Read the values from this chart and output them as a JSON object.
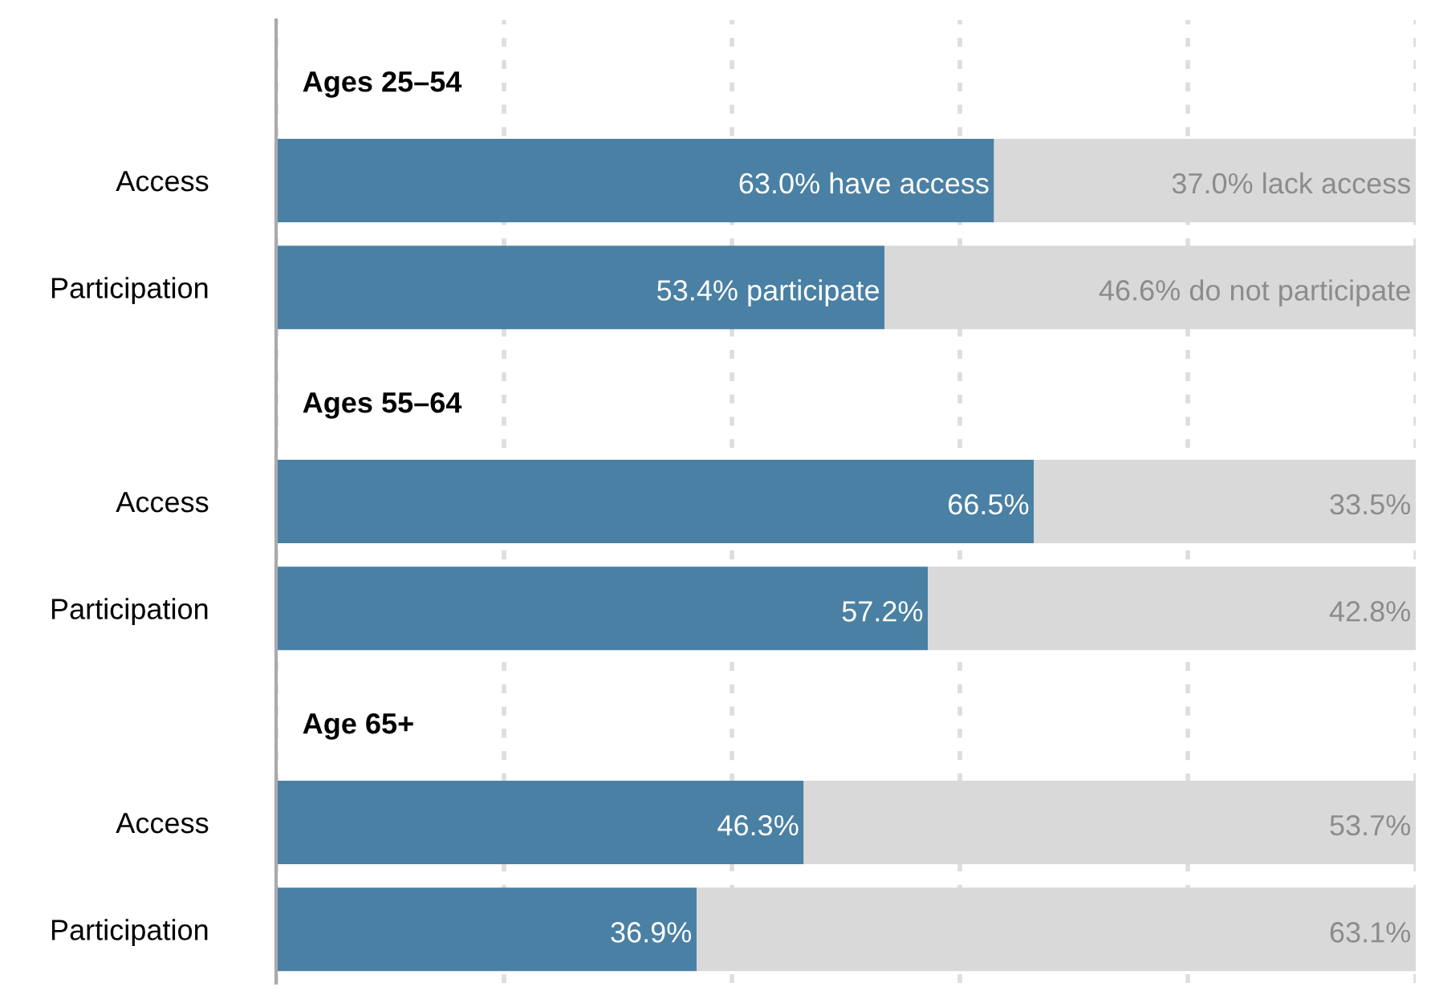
{
  "chart_data": {
    "type": "bar",
    "orientation": "horizontal",
    "stacked": true,
    "categories": [
      null,
      "Access",
      "Participation",
      null,
      "Access",
      "Participation",
      null,
      "Access",
      "Participation"
    ],
    "series": [
      {
        "color": "#4a80a3",
        "values": [
          null,
          63.0,
          53.4,
          null,
          66.5,
          57.2,
          null,
          46.3,
          36.9
        ],
        "value_labels": [
          null,
          "63.0% have access",
          "53.4% participate",
          null,
          "66.5%",
          "57.2%",
          null,
          "46.3%",
          "36.9%"
        ]
      },
      {
        "color": "#d9d9d9",
        "values": [
          null,
          37.0,
          46.6,
          null,
          33.5,
          42.8,
          null,
          53.7,
          63.1
        ],
        "value_labels": [
          null,
          "37.0% lack access",
          "46.6% do not participate",
          null,
          "33.5%",
          "42.8%",
          null,
          "53.7%",
          "63.1%"
        ]
      }
    ],
    "annotations": [
      "Ages 25–54",
      "Ages 55–64",
      "Age 65+"
    ],
    "xlim": [
      0,
      100
    ],
    "xticks": [
      {
        "value": 0,
        "label": null
      },
      {
        "value": 20,
        "label": null
      },
      {
        "value": 40,
        "label": null
      },
      {
        "value": 60,
        "label": null
      },
      {
        "value": 80,
        "label": null
      },
      {
        "value": 100,
        "label": null
      }
    ],
    "grid": "x",
    "tick_labels": "y",
    "legend": false
  }
}
